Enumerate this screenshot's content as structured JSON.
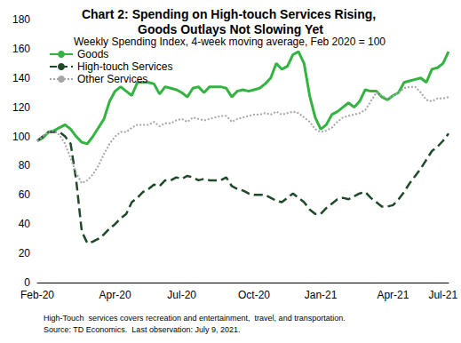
{
  "chart_data": {
    "type": "line",
    "title": "Chart 2: Spending on High-touch Services Rising, Goods Outlays Not Slowing Yet",
    "subtitle": "Weekly Spending Index, 4-week moving average, Feb 2020 = 100",
    "notes": [
      "High-Touch  services covers recreation and entertainment,  travel, and transportation.",
      "Source: TD Economics.  Last observation: July 9, 2021."
    ],
    "categories": [
      "Feb-20",
      null,
      null,
      null,
      null,
      null,
      null,
      null,
      null,
      null,
      null,
      null,
      null,
      null,
      "Apr-20",
      null,
      null,
      null,
      null,
      null,
      null,
      null,
      null,
      null,
      null,
      null,
      "Jul-20",
      null,
      null,
      null,
      null,
      null,
      null,
      null,
      null,
      null,
      null,
      null,
      null,
      "Oct-20",
      null,
      null,
      null,
      null,
      null,
      null,
      null,
      null,
      null,
      null,
      null,
      "Jan-21",
      null,
      null,
      null,
      null,
      null,
      null,
      null,
      null,
      null,
      null,
      null,
      null,
      "Apr-21",
      null,
      null,
      null,
      null,
      null,
      null,
      null,
      null,
      "Jul-21",
      null
    ],
    "series": [
      {
        "name": "Goods",
        "color": "#33b33f",
        "line_style": "solid",
        "values": [
          97,
          99,
          103,
          104,
          106,
          108,
          105,
          100,
          96,
          95,
          100,
          106,
          112,
          124,
          131,
          134,
          131,
          128,
          137,
          137,
          137,
          136,
          129,
          134,
          133,
          132,
          130,
          127,
          133,
          134,
          130,
          134,
          134,
          134,
          133,
          127,
          131,
          132,
          131,
          132,
          133,
          136,
          140,
          150,
          146,
          148,
          156,
          158,
          150,
          128,
          113,
          105,
          108,
          115,
          117,
          120,
          123,
          120,
          124,
          132,
          131,
          131,
          127,
          125,
          128,
          130,
          137,
          138,
          139,
          140,
          137,
          146,
          147,
          150,
          158
        ]
      },
      {
        "name": "High-touch Services",
        "color": "#1e4a29",
        "line_style": "dashed",
        "values": [
          97,
          100,
          103,
          103,
          103,
          100,
          95,
          70,
          35,
          27,
          28,
          30,
          33,
          37,
          40,
          44,
          47,
          55,
          58,
          62,
          64,
          67,
          66,
          70,
          70,
          72,
          71,
          73,
          72,
          70,
          71,
          70,
          70,
          70,
          72,
          66,
          64,
          63,
          61,
          60,
          60,
          60,
          58,
          56,
          55,
          58,
          61,
          58,
          55,
          50,
          47,
          47,
          51,
          54,
          57,
          58,
          57,
          59,
          61,
          62,
          58,
          55,
          52,
          52,
          53,
          57,
          62,
          68,
          73,
          78,
          84,
          90,
          93,
          97,
          102
        ]
      },
      {
        "name": "Other Services",
        "color": "#a6a6a6",
        "line_style": "dotted",
        "values": [
          97,
          100,
          103,
          104,
          101,
          95,
          85,
          75,
          68,
          70,
          74,
          80,
          88,
          95,
          100,
          103,
          103,
          106,
          108,
          108,
          108,
          110,
          107,
          109,
          109,
          111,
          112,
          110,
          113,
          112,
          111,
          112,
          113,
          114,
          114,
          110,
          112,
          113,
          114,
          115,
          115,
          116,
          115,
          117,
          115,
          116,
          117,
          116,
          113,
          110,
          105,
          103,
          104,
          106,
          110,
          113,
          114,
          115,
          116,
          118,
          124,
          130,
          128,
          126,
          128,
          130,
          133,
          134,
          134,
          130,
          125,
          124,
          126,
          126,
          127
        ]
      }
    ],
    "ylim": [
      0,
      180
    ],
    "yticks": [
      0,
      20,
      40,
      60,
      80,
      100,
      120,
      140,
      160,
      180
    ],
    "grid": false,
    "legend": "upper left"
  }
}
